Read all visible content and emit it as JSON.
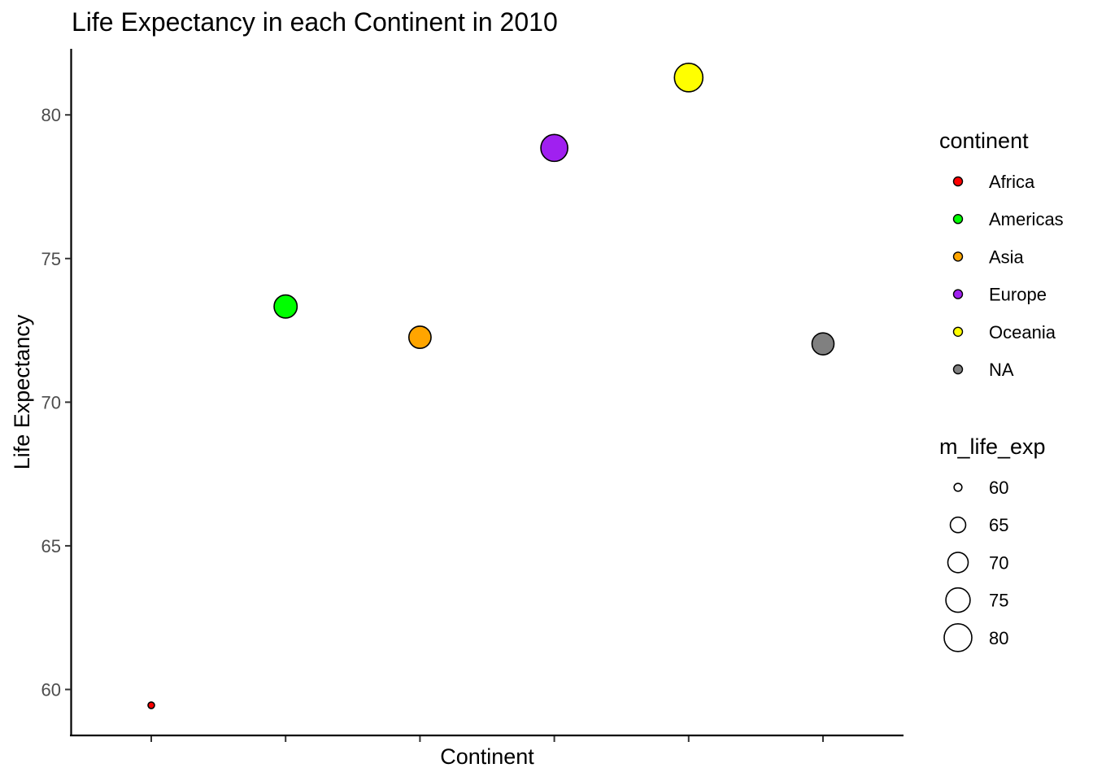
{
  "chart_data": {
    "type": "scatter",
    "title": "Life Expectancy in each Continent in 2010",
    "xlabel": "Continent",
    "ylabel": "Life Expectancy",
    "ylim": [
      58.4,
      82.3
    ],
    "y_ticks": [
      60,
      65,
      70,
      75,
      80
    ],
    "grid": false,
    "categories": [
      "Africa",
      "Americas",
      "Asia",
      "Europe",
      "Oceania",
      "NA"
    ],
    "values": [
      59.45,
      73.33,
      72.26,
      78.85,
      81.3,
      72.03
    ],
    "colors": [
      "#ff0000",
      "#00ff00",
      "#ffa500",
      "#a020f0",
      "#ffff00",
      "#808080"
    ],
    "legend_placement": "right",
    "color_legend": {
      "title": "continent",
      "entries": [
        "Africa",
        "Americas",
        "Asia",
        "Europe",
        "Oceania",
        "NA"
      ]
    },
    "size_legend": {
      "title": "m_life_exp",
      "entries": [
        60,
        65,
        70,
        75,
        80
      ]
    }
  }
}
